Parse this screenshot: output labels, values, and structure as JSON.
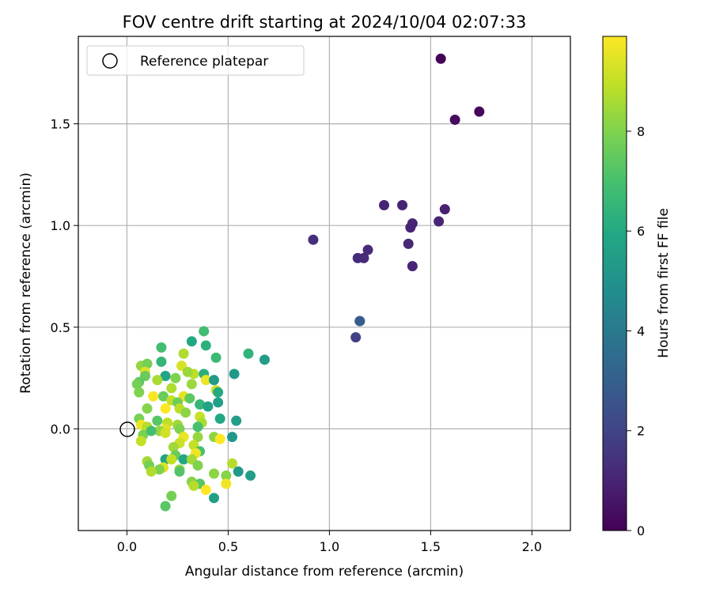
{
  "chart_data": {
    "type": "scatter",
    "title": "FOV centre drift starting at 2024/10/04 02:07:33",
    "xlabel": "Angular distance from reference (arcmin)",
    "ylabel": "Rotation from reference (arcmin)",
    "colorbar_label": "Hours from first FF file",
    "xlim": [
      -0.24,
      2.19
    ],
    "ylim": [
      -0.5,
      1.93
    ],
    "xticks": [
      "0.0",
      "0.5",
      "1.0",
      "1.5",
      "2.0"
    ],
    "yticks": [
      "0.0",
      "0.5",
      "1.0",
      "1.5"
    ],
    "colorbar_ticks": [
      "0",
      "2",
      "4",
      "6",
      "8"
    ],
    "colorbar_range": [
      0,
      9.9
    ],
    "colormap": "viridis",
    "grid": true,
    "legend": {
      "placement": "top-left",
      "label": "Reference platepar"
    },
    "reference_point": {
      "x": 0.0,
      "y": 0.0
    },
    "points": [
      {
        "x": 1.55,
        "y": 1.82,
        "c": 0.1
      },
      {
        "x": 1.74,
        "y": 1.56,
        "c": 0.2
      },
      {
        "x": 1.62,
        "y": 1.52,
        "c": 0.3
      },
      {
        "x": 1.27,
        "y": 1.1,
        "c": 1.0
      },
      {
        "x": 1.36,
        "y": 1.1,
        "c": 1.0
      },
      {
        "x": 1.57,
        "y": 1.08,
        "c": 0.9
      },
      {
        "x": 1.54,
        "y": 1.02,
        "c": 1.0
      },
      {
        "x": 1.41,
        "y": 1.01,
        "c": 1.0
      },
      {
        "x": 1.4,
        "y": 0.99,
        "c": 1.0
      },
      {
        "x": 0.92,
        "y": 0.93,
        "c": 1.3
      },
      {
        "x": 1.39,
        "y": 0.91,
        "c": 1.1
      },
      {
        "x": 1.19,
        "y": 0.88,
        "c": 1.2
      },
      {
        "x": 1.14,
        "y": 0.84,
        "c": 1.2
      },
      {
        "x": 1.17,
        "y": 0.84,
        "c": 1.2
      },
      {
        "x": 1.41,
        "y": 0.8,
        "c": 1.0
      },
      {
        "x": 1.15,
        "y": 0.53,
        "c": 2.5
      },
      {
        "x": 1.15,
        "y": 0.53,
        "c": 2.9
      },
      {
        "x": 1.13,
        "y": 0.45,
        "c": 1.9
      },
      {
        "x": 0.38,
        "y": 0.48,
        "c": 6.8
      },
      {
        "x": 0.17,
        "y": 0.4,
        "c": 6.9
      },
      {
        "x": 0.32,
        "y": 0.43,
        "c": 5.9
      },
      {
        "x": 0.39,
        "y": 0.41,
        "c": 6.3
      },
      {
        "x": 0.6,
        "y": 0.37,
        "c": 6.4
      },
      {
        "x": 0.28,
        "y": 0.37,
        "c": 8.7
      },
      {
        "x": 0.44,
        "y": 0.35,
        "c": 6.7
      },
      {
        "x": 0.68,
        "y": 0.34,
        "c": 5.5
      },
      {
        "x": 0.17,
        "y": 0.33,
        "c": 6.5
      },
      {
        "x": 0.07,
        "y": 0.31,
        "c": 8.3
      },
      {
        "x": 0.1,
        "y": 0.32,
        "c": 7.8
      },
      {
        "x": 0.27,
        "y": 0.31,
        "c": 9.3
      },
      {
        "x": 0.09,
        "y": 0.28,
        "c": 9.4
      },
      {
        "x": 0.33,
        "y": 0.27,
        "c": 8.9
      },
      {
        "x": 0.3,
        "y": 0.28,
        "c": 8.4
      },
      {
        "x": 0.53,
        "y": 0.27,
        "c": 5.3
      },
      {
        "x": 0.38,
        "y": 0.27,
        "c": 6.2
      },
      {
        "x": 0.09,
        "y": 0.26,
        "c": 7.6
      },
      {
        "x": 0.19,
        "y": 0.26,
        "c": 5.8
      },
      {
        "x": 0.24,
        "y": 0.25,
        "c": 8.0
      },
      {
        "x": 0.39,
        "y": 0.24,
        "c": 9.6
      },
      {
        "x": 0.43,
        "y": 0.24,
        "c": 5.4
      },
      {
        "x": 0.15,
        "y": 0.24,
        "c": 8.6
      },
      {
        "x": 0.06,
        "y": 0.23,
        "c": 7.4
      },
      {
        "x": 0.05,
        "y": 0.22,
        "c": 7.8
      },
      {
        "x": 0.32,
        "y": 0.22,
        "c": 8.4
      },
      {
        "x": 0.22,
        "y": 0.2,
        "c": 8.7
      },
      {
        "x": 0.44,
        "y": 0.19,
        "c": 9.2
      },
      {
        "x": 0.45,
        "y": 0.18,
        "c": 6.0
      },
      {
        "x": 0.06,
        "y": 0.18,
        "c": 8.0
      },
      {
        "x": 0.13,
        "y": 0.16,
        "c": 9.8
      },
      {
        "x": 0.18,
        "y": 0.16,
        "c": 7.6
      },
      {
        "x": 0.28,
        "y": 0.16,
        "c": 9.5
      },
      {
        "x": 0.31,
        "y": 0.15,
        "c": 7.4
      },
      {
        "x": 0.22,
        "y": 0.14,
        "c": 9.0
      },
      {
        "x": 0.25,
        "y": 0.13,
        "c": 7.7
      },
      {
        "x": 0.45,
        "y": 0.13,
        "c": 5.6
      },
      {
        "x": 0.36,
        "y": 0.12,
        "c": 6.5
      },
      {
        "x": 0.26,
        "y": 0.1,
        "c": 8.9
      },
      {
        "x": 0.4,
        "y": 0.11,
        "c": 5.7
      },
      {
        "x": 0.1,
        "y": 0.1,
        "c": 8.1
      },
      {
        "x": 0.19,
        "y": 0.1,
        "c": 9.9
      },
      {
        "x": 0.29,
        "y": 0.08,
        "c": 8.2
      },
      {
        "x": 0.36,
        "y": 0.06,
        "c": 9.1
      },
      {
        "x": 0.46,
        "y": 0.05,
        "c": 5.9
      },
      {
        "x": 0.06,
        "y": 0.05,
        "c": 7.9
      },
      {
        "x": 0.15,
        "y": 0.04,
        "c": 7.3
      },
      {
        "x": 0.2,
        "y": 0.03,
        "c": 8.9
      },
      {
        "x": 0.37,
        "y": 0.03,
        "c": 8.6
      },
      {
        "x": 0.54,
        "y": 0.04,
        "c": 5.5
      },
      {
        "x": 0.25,
        "y": 0.02,
        "c": 8.5
      },
      {
        "x": 0.35,
        "y": 0.01,
        "c": 7.0
      },
      {
        "x": 0.07,
        "y": 0.02,
        "c": 9.6
      },
      {
        "x": 0.1,
        "y": 0.01,
        "c": 8.8
      },
      {
        "x": 0.19,
        "y": 0.0,
        "c": 9.4
      },
      {
        "x": 0.26,
        "y": 0.0,
        "c": 8.0
      },
      {
        "x": 0.16,
        "y": -0.01,
        "c": 8.3
      },
      {
        "x": 0.08,
        "y": -0.03,
        "c": 7.9
      },
      {
        "x": 0.12,
        "y": -0.01,
        "c": 6.9
      },
      {
        "x": 0.19,
        "y": -0.02,
        "c": 9.2
      },
      {
        "x": 0.28,
        "y": -0.04,
        "c": 9.6
      },
      {
        "x": 0.35,
        "y": -0.04,
        "c": 8.3
      },
      {
        "x": 0.43,
        "y": -0.04,
        "c": 8.2
      },
      {
        "x": 0.52,
        "y": -0.04,
        "c": 5.2
      },
      {
        "x": 0.46,
        "y": -0.05,
        "c": 9.9
      },
      {
        "x": 0.07,
        "y": -0.06,
        "c": 9.0
      },
      {
        "x": 0.26,
        "y": -0.07,
        "c": 9.1
      },
      {
        "x": 0.33,
        "y": -0.08,
        "c": 9.0
      },
      {
        "x": 0.23,
        "y": -0.09,
        "c": 8.5
      },
      {
        "x": 0.36,
        "y": -0.11,
        "c": 7.0
      },
      {
        "x": 0.34,
        "y": -0.12,
        "c": 9.7
      },
      {
        "x": 0.24,
        "y": -0.13,
        "c": 7.6
      },
      {
        "x": 0.19,
        "y": -0.15,
        "c": 5.9
      },
      {
        "x": 0.28,
        "y": -0.15,
        "c": 5.9
      },
      {
        "x": 0.32,
        "y": -0.15,
        "c": 8.5
      },
      {
        "x": 0.22,
        "y": -0.15,
        "c": 9.0
      },
      {
        "x": 0.1,
        "y": -0.16,
        "c": 8.5
      },
      {
        "x": 0.52,
        "y": -0.17,
        "c": 8.8
      },
      {
        "x": 0.11,
        "y": -0.18,
        "c": 7.8
      },
      {
        "x": 0.35,
        "y": -0.18,
        "c": 8.0
      },
      {
        "x": 0.18,
        "y": -0.19,
        "c": 9.4
      },
      {
        "x": 0.26,
        "y": -0.2,
        "c": 8.3
      },
      {
        "x": 0.16,
        "y": -0.2,
        "c": 8.0
      },
      {
        "x": 0.55,
        "y": -0.21,
        "c": 5.3
      },
      {
        "x": 0.12,
        "y": -0.21,
        "c": 8.7
      },
      {
        "x": 0.26,
        "y": -0.21,
        "c": 7.2
      },
      {
        "x": 0.43,
        "y": -0.22,
        "c": 8.2
      },
      {
        "x": 0.49,
        "y": -0.23,
        "c": 8.1
      },
      {
        "x": 0.61,
        "y": -0.23,
        "c": 5.5
      },
      {
        "x": 0.32,
        "y": -0.26,
        "c": 8.1
      },
      {
        "x": 0.36,
        "y": -0.27,
        "c": 7.3
      },
      {
        "x": 0.49,
        "y": -0.27,
        "c": 9.7
      },
      {
        "x": 0.33,
        "y": -0.28,
        "c": 8.8
      },
      {
        "x": 0.39,
        "y": -0.3,
        "c": 9.9
      },
      {
        "x": 0.22,
        "y": -0.33,
        "c": 7.8
      },
      {
        "x": 0.43,
        "y": -0.34,
        "c": 5.6
      },
      {
        "x": 0.19,
        "y": -0.38,
        "c": 7.3
      }
    ]
  }
}
